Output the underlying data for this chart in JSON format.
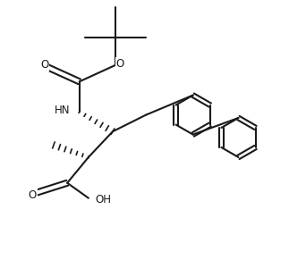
{
  "background_color": "#ffffff",
  "line_color": "#1a1a1a",
  "line_width": 1.5,
  "figsize": [
    3.23,
    2.91
  ],
  "dpi": 100,
  "xlim": [
    0,
    9.5
  ],
  "ylim": [
    0,
    8.5
  ]
}
